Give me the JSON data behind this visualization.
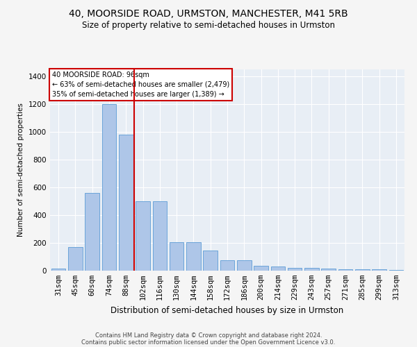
{
  "title": "40, MOORSIDE ROAD, URMSTON, MANCHESTER, M41 5RB",
  "subtitle": "Size of property relative to semi-detached houses in Urmston",
  "xlabel": "Distribution of semi-detached houses by size in Urmston",
  "ylabel": "Number of semi-detached properties",
  "footnote1": "Contains HM Land Registry data © Crown copyright and database right 2024.",
  "footnote2": "Contains public sector information licensed under the Open Government Licence v3.0.",
  "categories": [
    "31sqm",
    "45sqm",
    "60sqm",
    "74sqm",
    "88sqm",
    "102sqm",
    "116sqm",
    "130sqm",
    "144sqm",
    "158sqm",
    "172sqm",
    "186sqm",
    "200sqm",
    "214sqm",
    "229sqm",
    "243sqm",
    "257sqm",
    "271sqm",
    "285sqm",
    "299sqm",
    "313sqm"
  ],
  "values": [
    15,
    170,
    560,
    1200,
    980,
    500,
    500,
    205,
    205,
    145,
    75,
    75,
    35,
    30,
    20,
    20,
    15,
    10,
    10,
    10,
    5
  ],
  "bar_color": "#aec6e8",
  "bar_edge_color": "#5b9bd5",
  "highlight_line_index": 4,
  "highlight_line_color": "#cc0000",
  "annotation_title": "40 MOORSIDE ROAD: 96sqm",
  "annotation_line1": "← 63% of semi-detached houses are smaller (2,479)",
  "annotation_line2": "35% of semi-detached houses are larger (1,389) →",
  "ylim": [
    0,
    1450
  ],
  "yticks": [
    0,
    200,
    400,
    600,
    800,
    1000,
    1200,
    1400
  ],
  "plot_bg_color": "#e8eef5",
  "grid_color": "#ffffff",
  "title_fontsize": 10,
  "subtitle_fontsize": 8.5,
  "ylabel_fontsize": 7.5,
  "xlabel_fontsize": 8.5,
  "tick_fontsize": 7.5,
  "footnote_fontsize": 6.0
}
